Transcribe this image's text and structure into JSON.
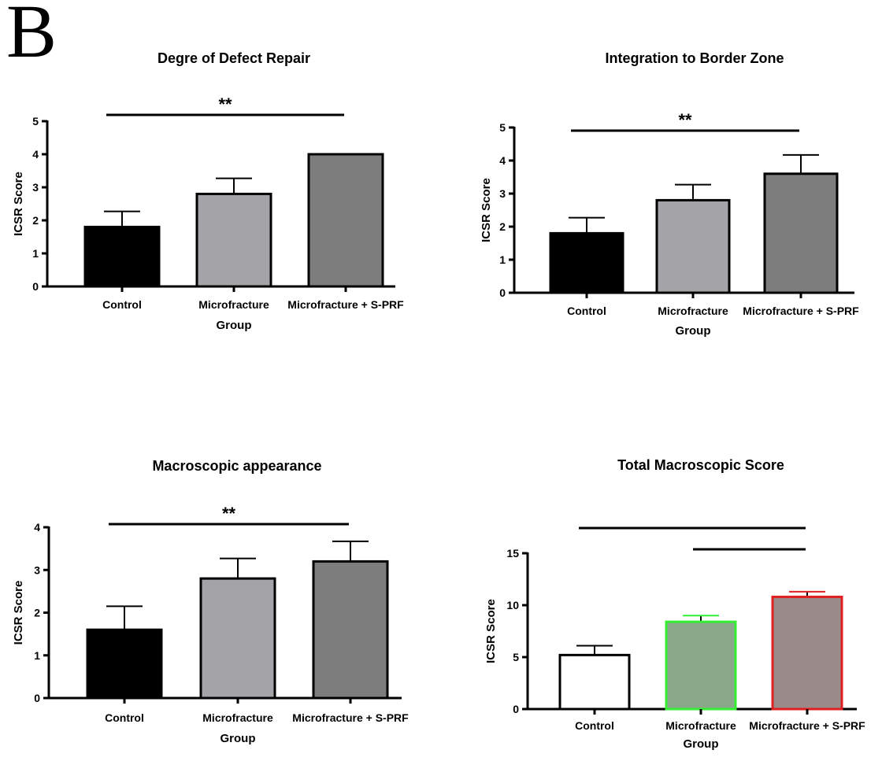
{
  "panel_letter": "B",
  "chart_data": [
    {
      "type": "bar",
      "title": "Degre of Defect Repair",
      "xlabel": "Group",
      "ylabel": "ICSR Score",
      "ylim": [
        0,
        5
      ],
      "yticks": [
        0,
        1,
        2,
        3,
        4,
        5
      ],
      "categories": [
        "Control",
        "Microfracture",
        "Microfracture + S-PRF"
      ],
      "values": [
        1.8,
        2.8,
        4.0
      ],
      "errors": [
        0.47,
        0.47,
        0
      ],
      "fills": [
        "#000000",
        "#a4a4a8",
        "#7d7d7d"
      ],
      "strokes": [
        "#000000",
        "#000000",
        "#000000"
      ],
      "significance": [
        {
          "from": 0,
          "to": 2,
          "label": "**"
        }
      ]
    },
    {
      "type": "bar",
      "title": "Integration to Border Zone",
      "xlabel": "Group",
      "ylabel": "ICSR Score",
      "ylim": [
        0,
        5
      ],
      "yticks": [
        0,
        1,
        2,
        3,
        4,
        5
      ],
      "categories": [
        "Control",
        "Microfracture",
        "Microfracture + S-PRF"
      ],
      "values": [
        1.8,
        2.8,
        3.6
      ],
      "errors": [
        0.47,
        0.47,
        0.57
      ],
      "fills": [
        "#000000",
        "#a4a4a8",
        "#7d7d7d"
      ],
      "strokes": [
        "#000000",
        "#000000",
        "#000000"
      ],
      "significance": [
        {
          "from": 0,
          "to": 2,
          "label": "**"
        }
      ]
    },
    {
      "type": "bar",
      "title": "Macroscopic appearance",
      "xlabel": "Group",
      "ylabel": "ICSR Score",
      "ylim": [
        0,
        4
      ],
      "yticks": [
        0,
        1,
        2,
        3,
        4
      ],
      "categories": [
        "Control",
        "Microfracture",
        "Microfracture + S-PRF"
      ],
      "values": [
        1.6,
        2.8,
        3.2
      ],
      "errors": [
        0.55,
        0.47,
        0.47
      ],
      "fills": [
        "#000000",
        "#a4a4a8",
        "#7d7d7d"
      ],
      "strokes": [
        "#000000",
        "#000000",
        "#000000"
      ],
      "significance": [
        {
          "from": 0,
          "to": 2,
          "label": "**"
        }
      ]
    },
    {
      "type": "bar",
      "title": "Total Macroscopic Score",
      "xlabel": "Group",
      "ylabel": "ICSR Score",
      "ylim": [
        0,
        15
      ],
      "yticks": [
        0,
        5,
        10,
        15
      ],
      "categories": [
        "Control",
        "Microfracture",
        "Microfracture + S-PRF"
      ],
      "values": [
        5.2,
        8.4,
        10.8
      ],
      "errors": [
        0.9,
        0.6,
        0.5
      ],
      "fills": [
        "#ffffff",
        "#8aa889",
        "#9b8a8a"
      ],
      "strokes": [
        "#000000",
        "#33ee33",
        "#e02020"
      ],
      "significance": [
        {
          "from": 0,
          "to": 2,
          "label": ""
        },
        {
          "from": 1,
          "to": 2,
          "label": ""
        }
      ]
    }
  ]
}
